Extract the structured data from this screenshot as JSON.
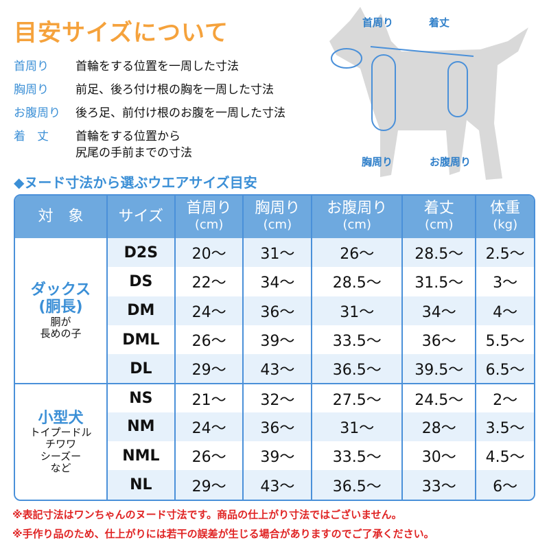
{
  "title": "目安サイズについて",
  "definitions": [
    {
      "term": "首周り",
      "desc": "首輪をする位置を一周した寸法"
    },
    {
      "term": "胸周り",
      "desc": "前足、後ろ付け根の胸を一周した寸法"
    },
    {
      "term": "お腹周り",
      "desc": "後ろ足、前付け根のお腹を一周した寸法"
    },
    {
      "term": "着　丈",
      "desc": "首輪をする位置から\n尻尾の手前までの寸法"
    }
  ],
  "diagram_labels": {
    "neck": "首周り",
    "length": "着丈",
    "chest": "胸周り",
    "belly": "お腹周り"
  },
  "subtitle": "◆ヌード寸法から選ぶウエアサイズ目安",
  "table": {
    "headers": [
      {
        "l": "対　象",
        "u": ""
      },
      {
        "l": "サイズ",
        "u": ""
      },
      {
        "l": "首周り",
        "u": "(cm)"
      },
      {
        "l": "胸周り",
        "u": "(cm)"
      },
      {
        "l": "お腹周り",
        "u": "(cm)"
      },
      {
        "l": "着丈",
        "u": "(cm)"
      },
      {
        "l": "体重",
        "u": "(kg)"
      }
    ],
    "groups": [
      {
        "name": "ダックス",
        "name2": "(胴長)",
        "note": "胴が\n長めの子",
        "rows": [
          [
            "D2S",
            "20〜",
            "31〜",
            "26〜",
            "28.5〜",
            "2.5〜"
          ],
          [
            "DS",
            "22〜",
            "34〜",
            "28.5〜",
            "31.5〜",
            "3〜"
          ],
          [
            "DM",
            "24〜",
            "36〜",
            "31〜",
            "34〜",
            "4〜"
          ],
          [
            "DML",
            "26〜",
            "39〜",
            "33.5〜",
            "36〜",
            "5.5〜"
          ],
          [
            "DL",
            "29〜",
            "43〜",
            "36.5〜",
            "39.5〜",
            "6.5〜"
          ]
        ]
      },
      {
        "name": "小型犬",
        "name2": "",
        "note": "トイプードル\nチワワ\nシーズー\nなど",
        "rows": [
          [
            "NS",
            "21〜",
            "32〜",
            "27.5〜",
            "24.5〜",
            "2〜"
          ],
          [
            "NM",
            "24〜",
            "36〜",
            "31〜",
            "28〜",
            "3.5〜"
          ],
          [
            "NML",
            "26〜",
            "39〜",
            "33.5〜",
            "30〜",
            "4.5〜"
          ],
          [
            "NL",
            "29〜",
            "43〜",
            "36.5〜",
            "33〜",
            "6〜"
          ]
        ]
      }
    ]
  },
  "notes": [
    "※表記寸法はワンちゃんのヌード寸法です。商品の仕上がり寸法ではございません。",
    "※手作り品のため、仕上がりには若干の誤差が生じる場合がありますのでご了承ください。"
  ],
  "colors": {
    "title": "#f5a23c",
    "accent": "#3b8fd6",
    "header": "#6ea9df",
    "note": "#e02424"
  }
}
